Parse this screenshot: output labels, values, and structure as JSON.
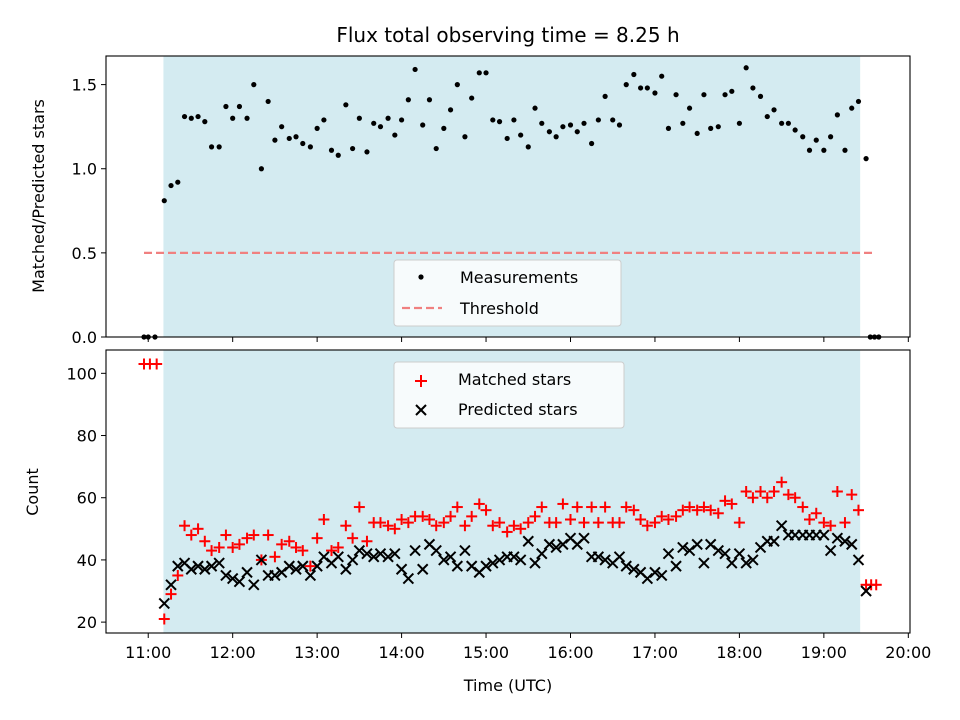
{
  "chart_data": {
    "title": "Flux total observing time = 8.25 h",
    "xlabel": "Time (UTC)",
    "x_ticks": [
      "11:00",
      "12:00",
      "13:00",
      "14:00",
      "15:00",
      "16:00",
      "17:00",
      "18:00",
      "19:00",
      "20:00"
    ],
    "x_tick_hours": [
      11,
      12,
      13,
      14,
      15,
      16,
      17,
      18,
      19,
      20
    ],
    "xlim": [
      10.5,
      20.02
    ],
    "observing_window": [
      11.18,
      19.43
    ],
    "colors": {
      "window": "#d4ebf1",
      "threshold": "#f08080",
      "matched": "#ff0000",
      "predicted": "#000000"
    },
    "top": {
      "type": "scatter",
      "ylabel": "Matched/Predicted stars",
      "ylim": [
        0,
        1.67
      ],
      "y_ticks": [
        0.0,
        0.5,
        1.0,
        1.5
      ],
      "y_tick_labels": [
        "0.0",
        "0.5",
        "1.0",
        "1.5"
      ],
      "threshold": {
        "y": 0.5,
        "x_range": [
          10.95,
          19.6
        ]
      },
      "legend": {
        "placement": "lower-center",
        "measurements": "Measurements",
        "threshold": "Threshold"
      },
      "measurements": [
        [
          10.95,
          0
        ],
        [
          11.0,
          0
        ],
        [
          11.08,
          0
        ],
        [
          11.19,
          0.81
        ],
        [
          11.27,
          0.9
        ],
        [
          11.35,
          0.92
        ],
        [
          11.43,
          1.31
        ],
        [
          11.51,
          1.3
        ],
        [
          11.59,
          1.31
        ],
        [
          11.67,
          1.28
        ],
        [
          11.75,
          1.13
        ],
        [
          11.84,
          1.13
        ],
        [
          11.92,
          1.37
        ],
        [
          12.0,
          1.3
        ],
        [
          12.08,
          1.37
        ],
        [
          12.17,
          1.3
        ],
        [
          12.25,
          1.5
        ],
        [
          12.34,
          1.0
        ],
        [
          12.42,
          1.4
        ],
        [
          12.5,
          1.17
        ],
        [
          12.58,
          1.25
        ],
        [
          12.67,
          1.18
        ],
        [
          12.75,
          1.19
        ],
        [
          12.83,
          1.15
        ],
        [
          12.92,
          1.13
        ],
        [
          13.0,
          1.24
        ],
        [
          13.08,
          1.29
        ],
        [
          13.17,
          1.11
        ],
        [
          13.25,
          1.08
        ],
        [
          13.34,
          1.38
        ],
        [
          13.42,
          1.12
        ],
        [
          13.5,
          1.3
        ],
        [
          13.59,
          1.1
        ],
        [
          13.67,
          1.27
        ],
        [
          13.75,
          1.25
        ],
        [
          13.84,
          1.3
        ],
        [
          13.92,
          1.2
        ],
        [
          14.0,
          1.29
        ],
        [
          14.08,
          1.41
        ],
        [
          14.16,
          1.59
        ],
        [
          14.25,
          1.26
        ],
        [
          14.33,
          1.41
        ],
        [
          14.41,
          1.12
        ],
        [
          14.5,
          1.24
        ],
        [
          14.58,
          1.35
        ],
        [
          14.66,
          1.5
        ],
        [
          14.75,
          1.19
        ],
        [
          14.83,
          1.42
        ],
        [
          14.92,
          1.57
        ],
        [
          15.0,
          1.57
        ],
        [
          15.08,
          1.29
        ],
        [
          15.16,
          1.28
        ],
        [
          15.25,
          1.18
        ],
        [
          15.33,
          1.29
        ],
        [
          15.41,
          1.2
        ],
        [
          15.5,
          1.13
        ],
        [
          15.58,
          1.36
        ],
        [
          15.66,
          1.27
        ],
        [
          15.75,
          1.22
        ],
        [
          15.83,
          1.19
        ],
        [
          15.91,
          1.25
        ],
        [
          16.0,
          1.26
        ],
        [
          16.08,
          1.22
        ],
        [
          16.16,
          1.27
        ],
        [
          16.25,
          1.15
        ],
        [
          16.33,
          1.29
        ],
        [
          16.41,
          1.43
        ],
        [
          16.5,
          1.29
        ],
        [
          16.58,
          1.26
        ],
        [
          16.66,
          1.5
        ],
        [
          16.75,
          1.56
        ],
        [
          16.83,
          1.48
        ],
        [
          16.91,
          1.48
        ],
        [
          17.0,
          1.45
        ],
        [
          17.08,
          1.55
        ],
        [
          17.16,
          1.24
        ],
        [
          17.25,
          1.44
        ],
        [
          17.33,
          1.27
        ],
        [
          17.41,
          1.36
        ],
        [
          17.5,
          1.21
        ],
        [
          17.58,
          1.44
        ],
        [
          17.66,
          1.24
        ],
        [
          17.75,
          1.25
        ],
        [
          17.83,
          1.44
        ],
        [
          17.91,
          1.46
        ],
        [
          18.0,
          1.27
        ],
        [
          18.08,
          1.6
        ],
        [
          18.16,
          1.48
        ],
        [
          18.25,
          1.43
        ],
        [
          18.33,
          1.31
        ],
        [
          18.41,
          1.35
        ],
        [
          18.5,
          1.27
        ],
        [
          18.58,
          1.27
        ],
        [
          18.66,
          1.23
        ],
        [
          18.75,
          1.19
        ],
        [
          18.83,
          1.11
        ],
        [
          18.91,
          1.17
        ],
        [
          19.0,
          1.11
        ],
        [
          19.08,
          1.19
        ],
        [
          19.16,
          1.32
        ],
        [
          19.25,
          1.11
        ],
        [
          19.33,
          1.36
        ],
        [
          19.41,
          1.4
        ],
        [
          19.5,
          1.06
        ],
        [
          19.55,
          0
        ],
        [
          19.6,
          0
        ],
        [
          19.65,
          0
        ]
      ]
    },
    "bottom": {
      "type": "scatter",
      "ylabel": "Count",
      "ylim": [
        16.5,
        107.5
      ],
      "y_ticks": [
        20,
        40,
        60,
        80,
        100
      ],
      "y_tick_labels": [
        "20",
        "40",
        "60",
        "80",
        "100"
      ],
      "legend": {
        "placement": "upper-center",
        "matched": "Matched stars",
        "predicted": "Predicted stars"
      },
      "matched": [
        [
          10.95,
          103
        ],
        [
          11.02,
          103
        ],
        [
          11.1,
          103
        ],
        [
          11.19,
          21
        ],
        [
          11.27,
          29
        ],
        [
          11.35,
          35
        ],
        [
          11.43,
          51
        ],
        [
          11.51,
          48
        ],
        [
          11.59,
          50
        ],
        [
          11.67,
          46
        ],
        [
          11.75,
          43
        ],
        [
          11.84,
          44
        ],
        [
          11.92,
          48
        ],
        [
          12.0,
          44
        ],
        [
          12.08,
          45
        ],
        [
          12.17,
          47
        ],
        [
          12.25,
          48
        ],
        [
          12.34,
          40
        ],
        [
          12.42,
          48
        ],
        [
          12.5,
          41
        ],
        [
          12.58,
          45
        ],
        [
          12.67,
          46
        ],
        [
          12.75,
          44
        ],
        [
          12.83,
          43
        ],
        [
          12.92,
          38
        ],
        [
          13.0,
          47
        ],
        [
          13.08,
          53
        ],
        [
          13.17,
          43
        ],
        [
          13.25,
          44
        ],
        [
          13.34,
          51
        ],
        [
          13.42,
          47
        ],
        [
          13.5,
          57
        ],
        [
          13.59,
          46
        ],
        [
          13.67,
          52
        ],
        [
          13.75,
          52
        ],
        [
          13.84,
          51
        ],
        [
          13.92,
          50
        ],
        [
          14.0,
          53
        ],
        [
          14.08,
          52
        ],
        [
          14.16,
          54
        ],
        [
          14.25,
          54
        ],
        [
          14.33,
          53
        ],
        [
          14.41,
          51
        ],
        [
          14.5,
          52
        ],
        [
          14.58,
          54
        ],
        [
          14.66,
          57
        ],
        [
          14.75,
          51
        ],
        [
          14.83,
          54
        ],
        [
          14.92,
          58
        ],
        [
          15.0,
          56
        ],
        [
          15.08,
          51
        ],
        [
          15.16,
          52
        ],
        [
          15.25,
          49
        ],
        [
          15.33,
          51
        ],
        [
          15.41,
          50
        ],
        [
          15.5,
          52
        ],
        [
          15.58,
          54
        ],
        [
          15.66,
          57
        ],
        [
          15.75,
          52
        ],
        [
          15.83,
          52
        ],
        [
          15.91,
          58
        ],
        [
          16.0,
          53
        ],
        [
          16.08,
          57
        ],
        [
          16.16,
          52
        ],
        [
          16.25,
          57
        ],
        [
          16.33,
          52
        ],
        [
          16.41,
          57
        ],
        [
          16.5,
          52
        ],
        [
          16.58,
          52
        ],
        [
          16.66,
          57
        ],
        [
          16.75,
          56
        ],
        [
          16.83,
          53
        ],
        [
          16.91,
          51
        ],
        [
          17.0,
          52
        ],
        [
          17.08,
          54
        ],
        [
          17.16,
          53
        ],
        [
          17.25,
          54
        ],
        [
          17.33,
          56
        ],
        [
          17.41,
          57
        ],
        [
          17.5,
          56
        ],
        [
          17.58,
          57
        ],
        [
          17.66,
          56
        ],
        [
          17.75,
          55
        ],
        [
          17.83,
          59
        ],
        [
          17.91,
          58
        ],
        [
          18.0,
          52
        ],
        [
          18.08,
          62
        ],
        [
          18.16,
          60
        ],
        [
          18.25,
          62
        ],
        [
          18.33,
          60
        ],
        [
          18.41,
          62
        ],
        [
          18.5,
          65
        ],
        [
          18.58,
          61
        ],
        [
          18.66,
          60
        ],
        [
          18.75,
          57
        ],
        [
          18.83,
          53
        ],
        [
          18.91,
          55
        ],
        [
          19.0,
          52
        ],
        [
          19.08,
          51
        ],
        [
          19.16,
          62
        ],
        [
          19.25,
          52
        ],
        [
          19.33,
          61
        ],
        [
          19.41,
          56
        ],
        [
          19.5,
          32
        ],
        [
          19.56,
          32
        ],
        [
          19.62,
          32
        ]
      ],
      "predicted": [
        [
          11.19,
          26
        ],
        [
          11.27,
          32
        ],
        [
          11.35,
          38
        ],
        [
          11.43,
          39
        ],
        [
          11.51,
          37
        ],
        [
          11.59,
          38
        ],
        [
          11.67,
          37
        ],
        [
          11.75,
          38
        ],
        [
          11.84,
          39
        ],
        [
          11.92,
          35
        ],
        [
          12.0,
          34
        ],
        [
          12.08,
          33
        ],
        [
          12.17,
          36
        ],
        [
          12.25,
          32
        ],
        [
          12.34,
          40
        ],
        [
          12.42,
          35
        ],
        [
          12.5,
          35
        ],
        [
          12.58,
          36
        ],
        [
          12.67,
          38
        ],
        [
          12.75,
          37
        ],
        [
          12.83,
          38
        ],
        [
          12.92,
          35
        ],
        [
          13.0,
          38
        ],
        [
          13.08,
          41
        ],
        [
          13.17,
          39
        ],
        [
          13.25,
          41
        ],
        [
          13.34,
          37
        ],
        [
          13.42,
          40
        ],
        [
          13.5,
          43
        ],
        [
          13.59,
          42
        ],
        [
          13.67,
          41
        ],
        [
          13.75,
          42
        ],
        [
          13.84,
          41
        ],
        [
          13.92,
          42
        ],
        [
          14.0,
          37
        ],
        [
          14.08,
          34
        ],
        [
          14.16,
          43
        ],
        [
          14.25,
          37
        ],
        [
          14.33,
          45
        ],
        [
          14.41,
          43
        ],
        [
          14.5,
          40
        ],
        [
          14.58,
          41
        ],
        [
          14.66,
          38
        ],
        [
          14.75,
          43
        ],
        [
          14.83,
          38
        ],
        [
          14.92,
          36
        ],
        [
          15.0,
          38
        ],
        [
          15.08,
          39
        ],
        [
          15.16,
          40
        ],
        [
          15.25,
          41
        ],
        [
          15.33,
          41
        ],
        [
          15.41,
          40
        ],
        [
          15.5,
          46
        ],
        [
          15.58,
          39
        ],
        [
          15.66,
          42
        ],
        [
          15.75,
          45
        ],
        [
          15.83,
          44
        ],
        [
          15.91,
          45
        ],
        [
          16.0,
          47
        ],
        [
          16.08,
          45
        ],
        [
          16.16,
          47
        ],
        [
          16.25,
          41
        ],
        [
          16.33,
          41
        ],
        [
          16.41,
          40
        ],
        [
          16.5,
          39
        ],
        [
          16.58,
          41
        ],
        [
          16.66,
          38
        ],
        [
          16.75,
          37
        ],
        [
          16.83,
          36
        ],
        [
          16.91,
          34
        ],
        [
          17.0,
          36
        ],
        [
          17.08,
          35
        ],
        [
          17.16,
          42
        ],
        [
          17.25,
          38
        ],
        [
          17.33,
          44
        ],
        [
          17.41,
          43
        ],
        [
          17.5,
          45
        ],
        [
          17.58,
          39
        ],
        [
          17.66,
          45
        ],
        [
          17.75,
          43
        ],
        [
          17.83,
          42
        ],
        [
          17.91,
          39
        ],
        [
          18.0,
          42
        ],
        [
          18.08,
          39
        ],
        [
          18.16,
          40
        ],
        [
          18.25,
          44
        ],
        [
          18.33,
          46
        ],
        [
          18.41,
          46
        ],
        [
          18.5,
          51
        ],
        [
          18.58,
          48
        ],
        [
          18.66,
          48
        ],
        [
          18.75,
          48
        ],
        [
          18.83,
          48
        ],
        [
          18.91,
          48
        ],
        [
          19.0,
          48
        ],
        [
          19.08,
          43
        ],
        [
          19.16,
          47
        ],
        [
          19.25,
          46
        ],
        [
          19.33,
          45
        ],
        [
          19.41,
          40
        ],
        [
          19.5,
          30
        ]
      ]
    }
  }
}
